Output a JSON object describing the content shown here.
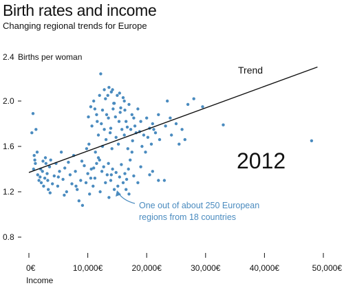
{
  "title": "Birth rates and income",
  "subtitle": "Changing regional trends for Europe",
  "chart_data": {
    "type": "scatter",
    "title": "Birth rates and income",
    "subtitle": "Changing regional trends for Europe",
    "ylabel_prefix": "2.4",
    "ylabel": "Births per woman",
    "xlabel": "Income",
    "year_label": "2012",
    "trend_label": "Trend",
    "annotation": [
      "One out of about 250 European",
      "regions from 18 countries"
    ],
    "point_color": "#4a8bbf",
    "annotation_color": "#4a8bbf",
    "xlim": [
      0,
      50000
    ],
    "ylim": [
      0.8,
      2.4
    ],
    "x_ticks": [
      0,
      10000,
      20000,
      30000,
      40000,
      50000
    ],
    "x_tick_labels": [
      "0€",
      "10,000€",
      "20,000€",
      "30,000€",
      "40,000€",
      "50,000€"
    ],
    "y_ticks": [
      0.8,
      1.2,
      1.6,
      2.0
    ],
    "y_tick_labels": [
      "0.8",
      "1.2",
      "1.6",
      "2.0"
    ],
    "trend": {
      "x": [
        0,
        49000
      ],
      "y": [
        1.37,
        2.3
      ]
    },
    "points": [
      [
        500,
        1.72
      ],
      [
        700,
        1.89
      ],
      [
        900,
        1.52
      ],
      [
        1000,
        1.48
      ],
      [
        1200,
        1.75
      ],
      [
        1400,
        1.55
      ],
      [
        800,
        1.4
      ],
      [
        1100,
        1.45
      ],
      [
        1500,
        1.35
      ],
      [
        1700,
        1.3
      ],
      [
        1900,
        1.33
      ],
      [
        2100,
        1.28
      ],
      [
        2300,
        1.38
      ],
      [
        2500,
        1.25
      ],
      [
        2700,
        1.32
      ],
      [
        2900,
        1.45
      ],
      [
        3100,
        1.36
      ],
      [
        3300,
        1.22
      ],
      [
        3500,
        1.42
      ],
      [
        3700,
        1.48
      ],
      [
        2000,
        1.4
      ],
      [
        2400,
        1.47
      ],
      [
        2800,
        1.5
      ],
      [
        3200,
        1.3
      ],
      [
        3600,
        1.19
      ],
      [
        4000,
        1.27
      ],
      [
        4300,
        1.34
      ],
      [
        4600,
        1.45
      ],
      [
        4900,
        1.25
      ],
      [
        5200,
        1.38
      ],
      [
        5500,
        1.55
      ],
      [
        5800,
        1.31
      ],
      [
        6100,
        1.41
      ],
      [
        6400,
        1.2
      ],
      [
        6700,
        1.46
      ],
      [
        7000,
        1.35
      ],
      [
        7300,
        1.27
      ],
      [
        7600,
        1.52
      ],
      [
        7900,
        1.38
      ],
      [
        8200,
        1.22
      ],
      [
        8500,
        1.12
      ],
      [
        8800,
        1.3
      ],
      [
        9100,
        1.08
      ],
      [
        9400,
        1.43
      ],
      [
        9700,
        1.28
      ],
      [
        10000,
        1.36
      ],
      [
        10300,
        1.18
      ],
      [
        10600,
        1.4
      ],
      [
        10900,
        1.25
      ],
      [
        11200,
        1.32
      ],
      [
        11500,
        1.45
      ],
      [
        11800,
        1.5
      ],
      [
        12100,
        1.2
      ],
      [
        12400,
        1.38
      ],
      [
        12700,
        1.42
      ],
      [
        13000,
        1.28
      ],
      [
        13300,
        1.35
      ],
      [
        13600,
        1.15
      ],
      [
        13900,
        1.3
      ],
      [
        14200,
        1.4
      ],
      [
        14500,
        1.22
      ],
      [
        14800,
        1.37
      ],
      [
        15100,
        1.25
      ],
      [
        15400,
        1.33
      ],
      [
        15700,
        1.44
      ],
      [
        16000,
        1.28
      ],
      [
        16300,
        1.36
      ],
      [
        16600,
        1.31
      ],
      [
        16900,
        1.4
      ],
      [
        17200,
        1.48
      ],
      [
        17500,
        1.55
      ],
      [
        17800,
        1.34
      ],
      [
        5000,
        1.33
      ],
      [
        6000,
        1.17
      ],
      [
        8000,
        1.25
      ],
      [
        9000,
        1.47
      ],
      [
        10500,
        1.32
      ],
      [
        11000,
        1.41
      ],
      [
        12000,
        1.48
      ],
      [
        14000,
        1.35
      ],
      [
        22000,
        1.3
      ],
      [
        20500,
        1.35
      ],
      [
        19000,
        1.42
      ],
      [
        18500,
        1.28
      ],
      [
        21000,
        1.38
      ],
      [
        16500,
        1.22
      ],
      [
        17000,
        1.18
      ],
      [
        13500,
        1.45
      ],
      [
        9800,
        1.58
      ],
      [
        10200,
        1.62
      ],
      [
        11300,
        1.55
      ],
      [
        12500,
        1.6
      ],
      [
        13100,
        1.66
      ],
      [
        14100,
        1.58
      ],
      [
        15200,
        1.62
      ],
      [
        16200,
        1.7
      ],
      [
        16800,
        1.58
      ],
      [
        17600,
        1.65
      ],
      [
        18200,
        1.72
      ],
      [
        19200,
        1.6
      ],
      [
        20200,
        1.68
      ],
      [
        21200,
        1.75
      ],
      [
        22200,
        1.66
      ],
      [
        23200,
        1.78
      ],
      [
        24200,
        1.7
      ],
      [
        11800,
        1.7
      ],
      [
        12800,
        1.75
      ],
      [
        13800,
        1.72
      ],
      [
        14800,
        1.68
      ],
      [
        15800,
        1.75
      ],
      [
        19800,
        1.55
      ],
      [
        20800,
        1.62
      ],
      [
        10500,
        1.95
      ],
      [
        11000,
        2.0
      ],
      [
        11500,
        1.88
      ],
      [
        12000,
        2.05
      ],
      [
        12500,
        1.92
      ],
      [
        13000,
        2.02
      ],
      [
        13500,
        1.85
      ],
      [
        14000,
        2.08
      ],
      [
        14500,
        1.98
      ],
      [
        15000,
        2.05
      ],
      [
        15500,
        1.9
      ],
      [
        16000,
        2.03
      ],
      [
        16500,
        1.82
      ],
      [
        17000,
        1.97
      ],
      [
        17500,
        1.88
      ],
      [
        18000,
        1.78
      ],
      [
        18500,
        1.93
      ],
      [
        19000,
        1.82
      ],
      [
        19500,
        1.7
      ],
      [
        20000,
        1.85
      ],
      [
        20500,
        1.76
      ],
      [
        21000,
        1.8
      ],
      [
        21500,
        1.72
      ],
      [
        22000,
        1.88
      ],
      [
        12800,
        2.1
      ],
      [
        13600,
        2.12
      ],
      [
        14200,
        2.1
      ],
      [
        15400,
        2.07
      ],
      [
        16200,
        2.0
      ],
      [
        12300,
        1.8
      ],
      [
        13200,
        1.88
      ],
      [
        14300,
        1.93
      ],
      [
        15300,
        1.82
      ],
      [
        16300,
        1.92
      ],
      [
        17300,
        1.75
      ],
      [
        10700,
        1.78
      ],
      [
        11600,
        1.82
      ],
      [
        12200,
        2.24
      ],
      [
        13900,
        1.76
      ],
      [
        14700,
        1.86
      ],
      [
        15600,
        1.94
      ],
      [
        16700,
        1.77
      ],
      [
        17800,
        1.85
      ],
      [
        18800,
        1.73
      ],
      [
        10100,
        1.86
      ],
      [
        11200,
        1.93
      ],
      [
        13400,
        2.05
      ],
      [
        14400,
        1.98
      ],
      [
        23500,
        2.0
      ],
      [
        24000,
        1.85
      ],
      [
        25000,
        1.8
      ],
      [
        26000,
        1.75
      ],
      [
        27000,
        1.97
      ],
      [
        25500,
        1.62
      ],
      [
        26500,
        1.66
      ],
      [
        28000,
        2.02
      ],
      [
        29500,
        1.95
      ],
      [
        33000,
        1.79
      ],
      [
        48000,
        1.65
      ],
      [
        23000,
        1.3
      ]
    ]
  }
}
